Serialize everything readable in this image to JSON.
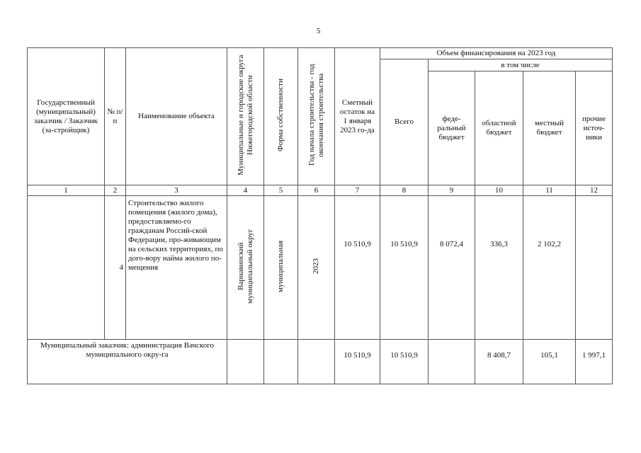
{
  "page_number": "5",
  "header": {
    "customer": "Государственный (муниципальный) заказчик / Заказчик (за-стройщик)",
    "number": "№ п/п",
    "object_name": "Наименование объекта",
    "districts": "Муниципальные и городские округа Нижегородской области",
    "ownership": "Форма собственности",
    "years": "Год начала строительства - год окончания строительства",
    "estimate_balance": "Сметный остаток на 1 января 2023 го-да",
    "financing": "Объем финансирования на 2023 год",
    "total": "Всего",
    "including": "в том числе",
    "federal": "феде-ральный бюджет",
    "regional": "областной бюджет",
    "local": "местный бюджет",
    "other": "прочие источ-ники"
  },
  "column_numbers": [
    "1",
    "2",
    "3",
    "4",
    "5",
    "6",
    "7",
    "8",
    "9",
    "10",
    "11",
    "12"
  ],
  "row": {
    "customer": "",
    "number": "4",
    "object_name": "Строительство жилого помещения (жилого дома), предоставляемо-го гражданам Россий-ской Федерации, про-живающим на сельских территориях, по дого-вору найма жилого по-мещения",
    "district": "Варнавинский муниципальный округ",
    "ownership": "муниципальная",
    "years": "2023",
    "estimate_balance": "10 510,9",
    "total": "10 510,9",
    "federal": "8 072,4",
    "regional": "336,3",
    "local": "2 102,2",
    "other": ""
  },
  "total_row": {
    "label": "Муниципальный заказчик: администрация Вачского муниципального окру-га",
    "estimate_balance": "10 510,9",
    "total": "10 510,9",
    "federal": "",
    "regional": "8 408,7",
    "local": "105,1",
    "other": "1 997,1"
  }
}
